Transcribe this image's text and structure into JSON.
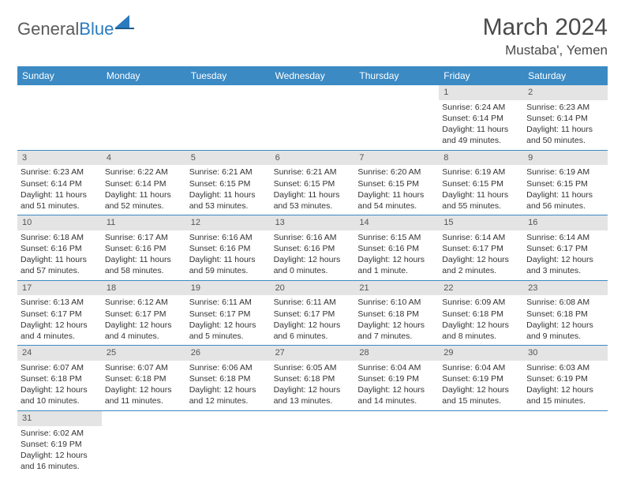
{
  "logo": {
    "text_general": "General",
    "text_blue": "Blue"
  },
  "title": {
    "month": "March 2024",
    "location": "Mustaba', Yemen"
  },
  "colors": {
    "header_bg": "#3b8ac4",
    "header_text": "#ffffff",
    "daynum_bg": "#e4e4e4",
    "daynum_text": "#555555",
    "body_text": "#333333",
    "border": "#3b8ac4",
    "logo_gray": "#5a5a5a",
    "logo_blue": "#2b7bbf"
  },
  "day_names": [
    "Sunday",
    "Monday",
    "Tuesday",
    "Wednesday",
    "Thursday",
    "Friday",
    "Saturday"
  ],
  "weeks": [
    [
      null,
      null,
      null,
      null,
      null,
      {
        "n": "1",
        "sr": "Sunrise: 6:24 AM",
        "ss": "Sunset: 6:14 PM",
        "dl": "Daylight: 11 hours and 49 minutes."
      },
      {
        "n": "2",
        "sr": "Sunrise: 6:23 AM",
        "ss": "Sunset: 6:14 PM",
        "dl": "Daylight: 11 hours and 50 minutes."
      }
    ],
    [
      {
        "n": "3",
        "sr": "Sunrise: 6:23 AM",
        "ss": "Sunset: 6:14 PM",
        "dl": "Daylight: 11 hours and 51 minutes."
      },
      {
        "n": "4",
        "sr": "Sunrise: 6:22 AM",
        "ss": "Sunset: 6:14 PM",
        "dl": "Daylight: 11 hours and 52 minutes."
      },
      {
        "n": "5",
        "sr": "Sunrise: 6:21 AM",
        "ss": "Sunset: 6:15 PM",
        "dl": "Daylight: 11 hours and 53 minutes."
      },
      {
        "n": "6",
        "sr": "Sunrise: 6:21 AM",
        "ss": "Sunset: 6:15 PM",
        "dl": "Daylight: 11 hours and 53 minutes."
      },
      {
        "n": "7",
        "sr": "Sunrise: 6:20 AM",
        "ss": "Sunset: 6:15 PM",
        "dl": "Daylight: 11 hours and 54 minutes."
      },
      {
        "n": "8",
        "sr": "Sunrise: 6:19 AM",
        "ss": "Sunset: 6:15 PM",
        "dl": "Daylight: 11 hours and 55 minutes."
      },
      {
        "n": "9",
        "sr": "Sunrise: 6:19 AM",
        "ss": "Sunset: 6:15 PM",
        "dl": "Daylight: 11 hours and 56 minutes."
      }
    ],
    [
      {
        "n": "10",
        "sr": "Sunrise: 6:18 AM",
        "ss": "Sunset: 6:16 PM",
        "dl": "Daylight: 11 hours and 57 minutes."
      },
      {
        "n": "11",
        "sr": "Sunrise: 6:17 AM",
        "ss": "Sunset: 6:16 PM",
        "dl": "Daylight: 11 hours and 58 minutes."
      },
      {
        "n": "12",
        "sr": "Sunrise: 6:16 AM",
        "ss": "Sunset: 6:16 PM",
        "dl": "Daylight: 11 hours and 59 minutes."
      },
      {
        "n": "13",
        "sr": "Sunrise: 6:16 AM",
        "ss": "Sunset: 6:16 PM",
        "dl": "Daylight: 12 hours and 0 minutes."
      },
      {
        "n": "14",
        "sr": "Sunrise: 6:15 AM",
        "ss": "Sunset: 6:16 PM",
        "dl": "Daylight: 12 hours and 1 minute."
      },
      {
        "n": "15",
        "sr": "Sunrise: 6:14 AM",
        "ss": "Sunset: 6:17 PM",
        "dl": "Daylight: 12 hours and 2 minutes."
      },
      {
        "n": "16",
        "sr": "Sunrise: 6:14 AM",
        "ss": "Sunset: 6:17 PM",
        "dl": "Daylight: 12 hours and 3 minutes."
      }
    ],
    [
      {
        "n": "17",
        "sr": "Sunrise: 6:13 AM",
        "ss": "Sunset: 6:17 PM",
        "dl": "Daylight: 12 hours and 4 minutes."
      },
      {
        "n": "18",
        "sr": "Sunrise: 6:12 AM",
        "ss": "Sunset: 6:17 PM",
        "dl": "Daylight: 12 hours and 4 minutes."
      },
      {
        "n": "19",
        "sr": "Sunrise: 6:11 AM",
        "ss": "Sunset: 6:17 PM",
        "dl": "Daylight: 12 hours and 5 minutes."
      },
      {
        "n": "20",
        "sr": "Sunrise: 6:11 AM",
        "ss": "Sunset: 6:17 PM",
        "dl": "Daylight: 12 hours and 6 minutes."
      },
      {
        "n": "21",
        "sr": "Sunrise: 6:10 AM",
        "ss": "Sunset: 6:18 PM",
        "dl": "Daylight: 12 hours and 7 minutes."
      },
      {
        "n": "22",
        "sr": "Sunrise: 6:09 AM",
        "ss": "Sunset: 6:18 PM",
        "dl": "Daylight: 12 hours and 8 minutes."
      },
      {
        "n": "23",
        "sr": "Sunrise: 6:08 AM",
        "ss": "Sunset: 6:18 PM",
        "dl": "Daylight: 12 hours and 9 minutes."
      }
    ],
    [
      {
        "n": "24",
        "sr": "Sunrise: 6:07 AM",
        "ss": "Sunset: 6:18 PM",
        "dl": "Daylight: 12 hours and 10 minutes."
      },
      {
        "n": "25",
        "sr": "Sunrise: 6:07 AM",
        "ss": "Sunset: 6:18 PM",
        "dl": "Daylight: 12 hours and 11 minutes."
      },
      {
        "n": "26",
        "sr": "Sunrise: 6:06 AM",
        "ss": "Sunset: 6:18 PM",
        "dl": "Daylight: 12 hours and 12 minutes."
      },
      {
        "n": "27",
        "sr": "Sunrise: 6:05 AM",
        "ss": "Sunset: 6:18 PM",
        "dl": "Daylight: 12 hours and 13 minutes."
      },
      {
        "n": "28",
        "sr": "Sunrise: 6:04 AM",
        "ss": "Sunset: 6:19 PM",
        "dl": "Daylight: 12 hours and 14 minutes."
      },
      {
        "n": "29",
        "sr": "Sunrise: 6:04 AM",
        "ss": "Sunset: 6:19 PM",
        "dl": "Daylight: 12 hours and 15 minutes."
      },
      {
        "n": "30",
        "sr": "Sunrise: 6:03 AM",
        "ss": "Sunset: 6:19 PM",
        "dl": "Daylight: 12 hours and 15 minutes."
      }
    ],
    [
      {
        "n": "31",
        "sr": "Sunrise: 6:02 AM",
        "ss": "Sunset: 6:19 PM",
        "dl": "Daylight: 12 hours and 16 minutes."
      },
      null,
      null,
      null,
      null,
      null,
      null
    ]
  ]
}
